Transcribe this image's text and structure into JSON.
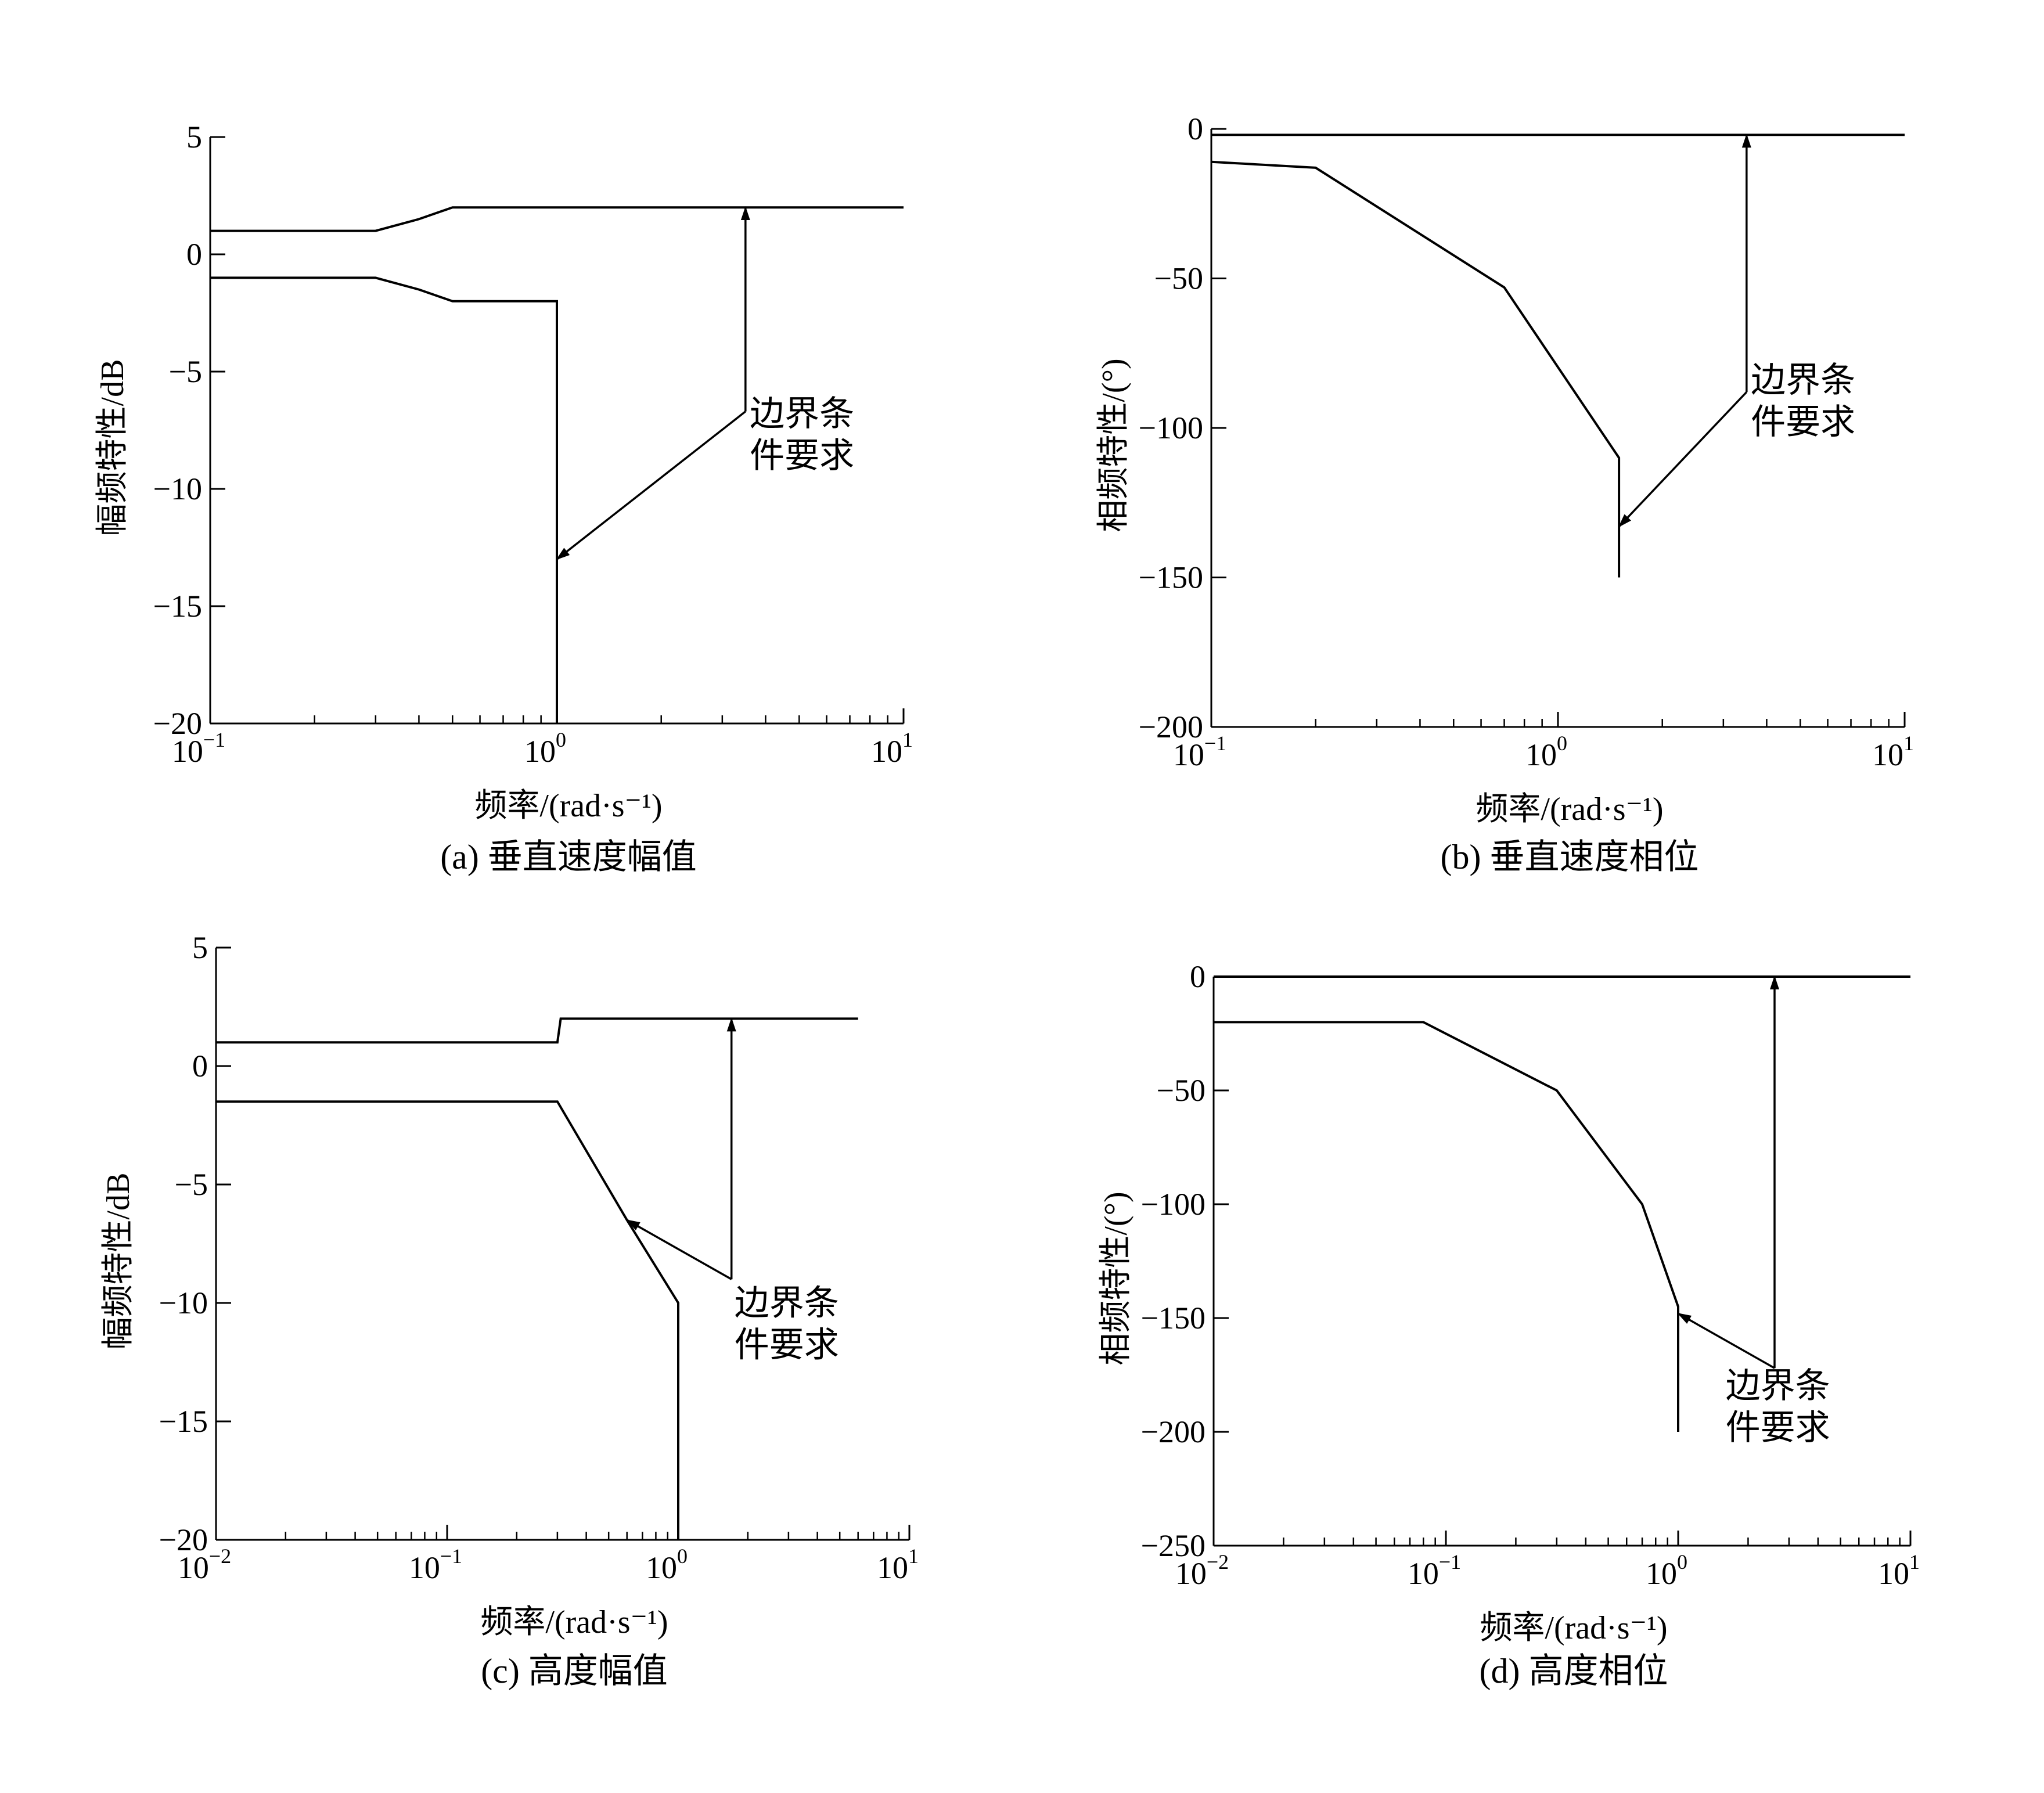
{
  "chart_data": [
    {
      "id": "a",
      "type": "line",
      "caption": "(a) 垂直速度幅值",
      "xlabel": "频率/(rad·s⁻¹)",
      "ylabel": "幅频特性/dB",
      "xscale": "log",
      "xlim": [
        0.1,
        10
      ],
      "ylim": [
        -20,
        5
      ],
      "xticks": [
        0.1,
        1,
        10
      ],
      "xticklabels": [
        {
          "base": "10",
          "exp": "−1"
        },
        {
          "base": "10",
          "exp": "0"
        },
        {
          "base": "10",
          "exp": "1"
        }
      ],
      "yticks": [
        5,
        0,
        -5,
        -10,
        -15,
        -20
      ],
      "yticklabels": [
        "5",
        "0",
        "−5",
        "−10",
        "−15",
        "−20"
      ],
      "grid": false,
      "series": [
        {
          "x": [
            0.1,
            0.3,
            0.4,
            0.5,
            10
          ],
          "y": [
            1,
            1,
            1.5,
            2,
            2
          ]
        },
        {
          "x": [
            0.1,
            0.3,
            0.4,
            0.5,
            1,
            1
          ],
          "y": [
            -1,
            -1,
            -1.5,
            -2,
            -2,
            -20
          ]
        }
      ],
      "annotation": {
        "label": [
          "边界条",
          "件要求"
        ],
        "text_at": [
          3.6,
          -7.3
        ],
        "elbow": [
          3.5,
          -6.7
        ],
        "arrows": [
          [
            3.5,
            2
          ],
          [
            1,
            -13
          ]
        ]
      }
    },
    {
      "id": "b",
      "type": "line",
      "caption": "(b) 垂直速度相位",
      "xlabel": "频率/(rad·s⁻¹)",
      "ylabel": "相频特性/(°)",
      "xscale": "log",
      "xlim": [
        0.1,
        10
      ],
      "ylim": [
        -200,
        0
      ],
      "xticks": [
        0.1,
        1,
        10
      ],
      "xticklabels": [
        {
          "base": "10",
          "exp": "−1"
        },
        {
          "base": "10",
          "exp": "0"
        },
        {
          "base": "10",
          "exp": "1"
        }
      ],
      "yticks": [
        0,
        -50,
        -100,
        -150,
        -200
      ],
      "yticklabels": [
        "0",
        "−50",
        "−100",
        "−150",
        "−200"
      ],
      "grid": false,
      "series": [
        {
          "x": [
            0.1,
            10
          ],
          "y": [
            -2,
            -2
          ]
        },
        {
          "x": [
            0.1,
            0.2,
            0.7,
            1.5,
            1.5
          ],
          "y": [
            -11,
            -13,
            -53,
            -110,
            -150
          ]
        }
      ],
      "annotation": {
        "label": [
          "边界条",
          "件要求"
        ],
        "text_at": [
          3.6,
          -88
        ],
        "elbow": [
          3.5,
          -88
        ],
        "arrows": [
          [
            3.5,
            -2
          ],
          [
            1.5,
            -133
          ]
        ]
      }
    },
    {
      "id": "c",
      "type": "line",
      "caption": "(c) 高度幅值",
      "xlabel": "频率/(rad·s⁻¹)",
      "ylabel": "幅频特性/dB",
      "xscale": "log",
      "xlim": [
        0.01,
        10
      ],
      "ylim": [
        -20,
        5
      ],
      "xticks": [
        0.01,
        0.1,
        1,
        10
      ],
      "xticklabels": [
        {
          "base": "10",
          "exp": "−2"
        },
        {
          "base": "10",
          "exp": "−1"
        },
        {
          "base": "10",
          "exp": "0"
        },
        {
          "base": "10",
          "exp": "1"
        }
      ],
      "yticks": [
        5,
        0,
        -5,
        -10,
        -15,
        -20
      ],
      "yticklabels": [
        "5",
        "0",
        "−5",
        "−10",
        "−15",
        "−20"
      ],
      "grid": false,
      "series": [
        {
          "x": [
            0.01,
            0.3,
            0.31,
            6
          ],
          "y": [
            1,
            1,
            2,
            2
          ]
        },
        {
          "x": [
            0.01,
            0.3,
            0.6,
            1,
            1
          ],
          "y": [
            -1.5,
            -1.5,
            -6.5,
            -10,
            -20
          ]
        }
      ],
      "annotation": {
        "label": [
          "边界条",
          "件要求"
        ],
        "text_at": [
          1.75,
          -10.5
        ],
        "elbow": [
          1.7,
          -9
        ],
        "arrows": [
          [
            1.7,
            2
          ],
          [
            0.6,
            -6.5
          ]
        ]
      }
    },
    {
      "id": "d",
      "type": "line",
      "caption": "(d) 高度相位",
      "xlabel": "频率/(rad·s⁻¹)",
      "ylabel": "相频特性/(°)",
      "xscale": "log",
      "xlim": [
        0.01,
        10
      ],
      "ylim": [
        -250,
        0
      ],
      "xticks": [
        0.01,
        0.1,
        1,
        10
      ],
      "xticklabels": [
        {
          "base": "10",
          "exp": "−2"
        },
        {
          "base": "10",
          "exp": "−1"
        },
        {
          "base": "10",
          "exp": "0"
        },
        {
          "base": "10",
          "exp": "1"
        }
      ],
      "yticks": [
        0,
        -50,
        -100,
        -150,
        -200,
        -250
      ],
      "yticklabels": [
        "0",
        "−50",
        "−100",
        "−150",
        "−200",
        "−250"
      ],
      "grid": false,
      "series": [
        {
          "x": [
            0.01,
            10
          ],
          "y": [
            0,
            0
          ]
        },
        {
          "x": [
            0.01,
            0.08,
            0.3,
            0.7,
            1,
            1
          ],
          "y": [
            -20,
            -20,
            -50,
            -100,
            -145,
            -200
          ]
        }
      ],
      "annotation": {
        "label": [
          "边界条",
          "件要求"
        ],
        "text_at": [
          1.6,
          -185
        ],
        "elbow": [
          2.6,
          -172
        ],
        "arrows": [
          [
            2.6,
            0
          ],
          [
            1,
            -148
          ]
        ]
      }
    }
  ]
}
